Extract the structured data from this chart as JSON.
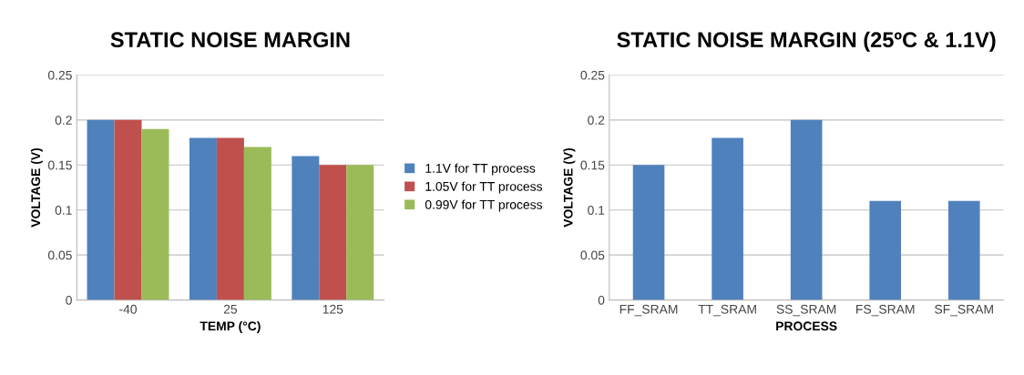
{
  "chart_data": [
    {
      "type": "bar",
      "title": "STATIC NOISE MARGIN",
      "xlabel": "TEMP (°C)",
      "ylabel": "VOLTAGE (V)",
      "categories": [
        "-40",
        "25",
        "125"
      ],
      "series": [
        {
          "name": "1.1V for TT process",
          "color": "#4f81bd",
          "values": [
            0.2,
            0.18,
            0.16
          ]
        },
        {
          "name": "1.05V for TT process",
          "color": "#c0504d",
          "values": [
            0.2,
            0.18,
            0.15
          ]
        },
        {
          "name": "0.99V for TT process",
          "color": "#9bbb59",
          "values": [
            0.19,
            0.17,
            0.15
          ]
        }
      ],
      "ylim": [
        0,
        0.25
      ],
      "yticks": [
        0,
        0.05,
        0.1,
        0.15,
        0.2,
        0.25
      ],
      "grid": "y",
      "legend": "right"
    },
    {
      "type": "bar",
      "title": "STATIC NOISE MARGIN (25ºC & 1.1V)",
      "xlabel": "PROCESS",
      "ylabel": "VOLTAGE (V)",
      "categories": [
        "FF_SRAM",
        "TT_SRAM",
        "SS_SRAM",
        "FS_SRAM",
        "SF_SRAM"
      ],
      "series": [
        {
          "color": "#4f81bd",
          "values": [
            0.15,
            0.18,
            0.2,
            0.11,
            0.11
          ]
        }
      ],
      "ylim": [
        0,
        0.25
      ],
      "yticks": [
        0,
        0.05,
        0.1,
        0.15,
        0.2,
        0.25
      ],
      "grid": "y"
    }
  ]
}
